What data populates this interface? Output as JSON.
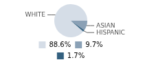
{
  "chart_data": {
    "type": "pie",
    "categories": [
      "WHITE",
      "ASIAN",
      "HISPANIC"
    ],
    "values": [
      88.6,
      9.7,
      1.7
    ],
    "value_labels": [
      "88.6%",
      "9.7%",
      "1.7%"
    ],
    "colors": [
      "#d5dde7",
      "#8ba1b6",
      "#33607f"
    ],
    "legend": "bottom"
  }
}
